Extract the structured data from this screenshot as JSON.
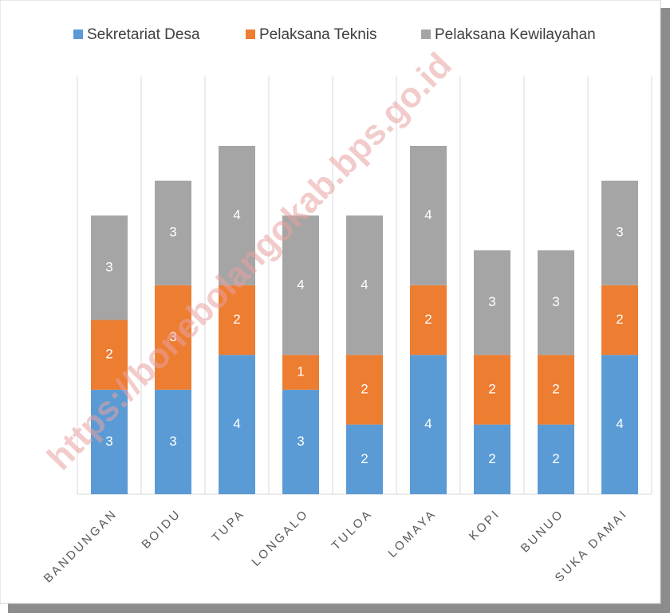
{
  "chart_data": {
    "type": "stacked_bar",
    "categories": [
      "BANDUNGAN",
      "BOIDU",
      "TUPA",
      "LONGALO",
      "TULOA",
      "LOMAYA",
      "KOPI",
      "BUNUO",
      "SUKA DAMAI"
    ],
    "series": [
      {
        "name": "Sekretariat Desa",
        "color": "#5b9bd5",
        "values": [
          3,
          3,
          4,
          3,
          2,
          4,
          2,
          2,
          4
        ]
      },
      {
        "name": "Pelaksana Teknis",
        "color": "#ed7d31",
        "values": [
          2,
          3,
          2,
          1,
          2,
          2,
          2,
          2,
          2
        ]
      },
      {
        "name": "Pelaksana Kewilayahan",
        "color": "#a5a5a5",
        "values": [
          3,
          3,
          4,
          4,
          4,
          4,
          3,
          3,
          3
        ]
      }
    ],
    "ylim": [
      0,
      12
    ],
    "legend": "top",
    "watermark": "https://bonebolangokab.bps.go.id"
  }
}
